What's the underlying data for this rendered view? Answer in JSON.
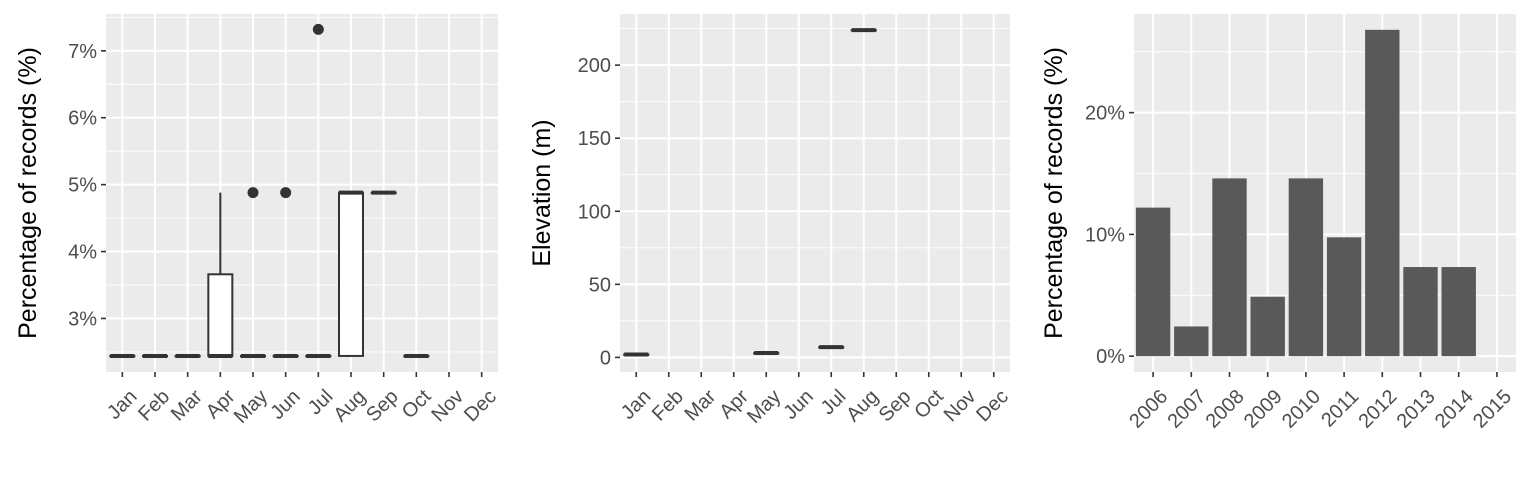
{
  "chart_data": [
    {
      "type": "box",
      "ylabel": "Percentage of records (%)",
      "categories": [
        "Jan",
        "Feb",
        "Mar",
        "Apr",
        "May",
        "Jun",
        "Jul",
        "Aug",
        "Sep",
        "Oct",
        "Nov",
        "Dec"
      ],
      "y_ticks": [
        3,
        4,
        5,
        6,
        7
      ],
      "y_tick_labels": [
        "3%",
        "4%",
        "5%",
        "6%",
        "7%"
      ],
      "ylim": [
        2.2,
        7.55
      ],
      "boxes": [
        {
          "x": "Jan",
          "q1": 2.44,
          "median": 2.44,
          "q3": 2.44,
          "low": 2.44,
          "high": 2.44,
          "outliers": []
        },
        {
          "x": "Feb",
          "q1": 2.44,
          "median": 2.44,
          "q3": 2.44,
          "low": 2.44,
          "high": 2.44,
          "outliers": []
        },
        {
          "x": "Mar",
          "q1": 2.44,
          "median": 2.44,
          "q3": 2.44,
          "low": 2.44,
          "high": 2.44,
          "outliers": []
        },
        {
          "x": "Apr",
          "q1": 2.44,
          "median": 2.44,
          "q3": 3.66,
          "low": 2.44,
          "high": 4.88,
          "outliers": []
        },
        {
          "x": "May",
          "q1": 2.44,
          "median": 2.44,
          "q3": 2.44,
          "low": 2.44,
          "high": 2.44,
          "outliers": [
            4.88
          ]
        },
        {
          "x": "Jun",
          "q1": 2.44,
          "median": 2.44,
          "q3": 2.44,
          "low": 2.44,
          "high": 2.44,
          "outliers": [
            4.88
          ]
        },
        {
          "x": "Jul",
          "q1": 2.44,
          "median": 2.44,
          "q3": 2.44,
          "low": 2.44,
          "high": 2.44,
          "outliers": [
            7.32
          ]
        },
        {
          "x": "Aug",
          "q1": 2.44,
          "median": 4.88,
          "q3": 4.88,
          "low": 2.44,
          "high": 4.88,
          "outliers": []
        },
        {
          "x": "Sep",
          "q1": 4.88,
          "median": 4.88,
          "q3": 4.88,
          "low": 4.88,
          "high": 4.88,
          "outliers": []
        },
        {
          "x": "Oct",
          "q1": 2.44,
          "median": 2.44,
          "q3": 2.44,
          "low": 2.44,
          "high": 2.44,
          "outliers": []
        }
      ],
      "grid": true
    },
    {
      "type": "box",
      "ylabel": "Elevation (m)",
      "categories": [
        "Jan",
        "Feb",
        "Mar",
        "Apr",
        "May",
        "Jun",
        "Jul",
        "Aug",
        "Sep",
        "Oct",
        "Nov",
        "Dec"
      ],
      "y_ticks": [
        0,
        50,
        100,
        150,
        200
      ],
      "y_tick_labels": [
        "0",
        "50",
        "100",
        "150",
        "200"
      ],
      "ylim": [
        -10,
        235
      ],
      "boxes": [
        {
          "x": "Jan",
          "q1": 2,
          "median": 2,
          "q3": 2,
          "low": 2,
          "high": 2,
          "outliers": []
        },
        {
          "x": "May",
          "q1": 3,
          "median": 3,
          "q3": 3,
          "low": 3,
          "high": 3,
          "outliers": []
        },
        {
          "x": "Jul",
          "q1": 7,
          "median": 7,
          "q3": 7,
          "low": 7,
          "high": 7,
          "outliers": []
        },
        {
          "x": "Aug",
          "q1": 224,
          "median": 224,
          "q3": 224,
          "low": 224,
          "high": 224,
          "outliers": []
        }
      ],
      "grid": true
    },
    {
      "type": "bar",
      "ylabel": "Percentage of records (%)",
      "categories": [
        "2006",
        "2007",
        "2008",
        "2009",
        "2010",
        "2011",
        "2012",
        "2013",
        "2014",
        "2015"
      ],
      "values": [
        12.2,
        2.44,
        14.6,
        4.88,
        14.6,
        9.76,
        26.8,
        7.32,
        7.32,
        0
      ],
      "y_ticks": [
        0,
        10,
        20
      ],
      "y_tick_labels": [
        "0%",
        "10%",
        "20%"
      ],
      "ylim": [
        -1.3,
        28.1
      ],
      "grid": true
    }
  ],
  "colors": {
    "panel_bg": "#ebebeb",
    "grid": "#ffffff",
    "mark": "#333333",
    "bar_fill": "#595959",
    "tick_label": "#4d4d4d",
    "axis_label": "#000000"
  }
}
